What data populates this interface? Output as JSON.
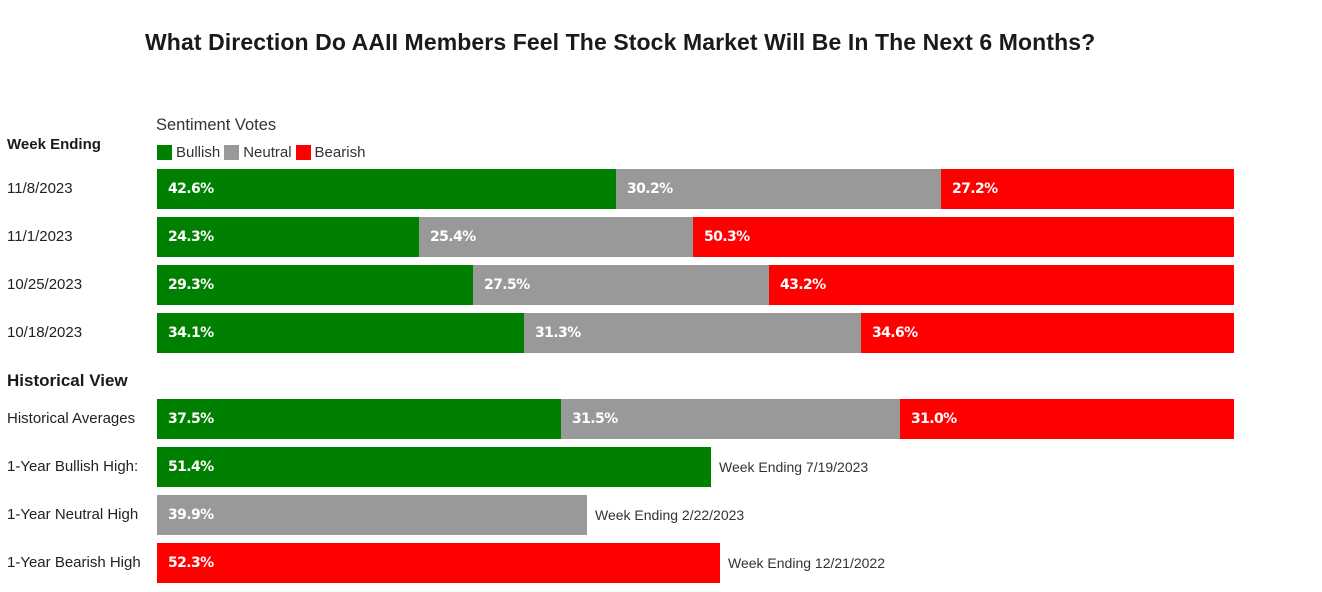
{
  "chart_data": {
    "type": "bar",
    "orientation": "horizontal",
    "stacked": true,
    "title": "What Direction Do AAII Members Feel The Stock Market Will Be In The Next 6 Months?",
    "legend_title": "Sentiment Votes",
    "legend": [
      {
        "name": "Bullish",
        "color": "#008000"
      },
      {
        "name": "Neutral",
        "color": "#999999"
      },
      {
        "name": "Bearish",
        "color": "#ff0000"
      }
    ],
    "weekly_header": "Week Ending",
    "weekly": [
      {
        "label": "11/8/2023",
        "values": [
          42.6,
          30.2,
          27.2
        ],
        "labels": [
          "42.6%",
          "30.2%",
          "27.2%"
        ]
      },
      {
        "label": "11/1/2023",
        "values": [
          24.3,
          25.4,
          50.3
        ],
        "labels": [
          "24.3%",
          "25.4%",
          "50.3%"
        ]
      },
      {
        "label": "10/25/2023",
        "values": [
          29.3,
          27.5,
          43.2
        ],
        "labels": [
          "29.3%",
          "27.5%",
          "43.2%"
        ]
      },
      {
        "label": "10/18/2023",
        "values": [
          34.1,
          31.3,
          34.6
        ],
        "labels": [
          "34.1%",
          "31.3%",
          "34.6%"
        ]
      }
    ],
    "historical_header": "Historical View",
    "historical_average": {
      "label": "Historical Averages",
      "values": [
        37.5,
        31.5,
        31.0
      ],
      "labels": [
        "37.5%",
        "31.5%",
        "31.0%"
      ]
    },
    "highs": [
      {
        "label": "1-Year Bullish High:",
        "series": 0,
        "value": 51.4,
        "value_label": "51.4%",
        "note": "Week Ending 7/19/2023"
      },
      {
        "label": "1-Year Neutral High",
        "series": 1,
        "value": 39.9,
        "value_label": "39.9%",
        "note": "Week Ending 2/22/2023"
      },
      {
        "label": "1-Year Bearish High",
        "series": 2,
        "value": 52.3,
        "value_label": "52.3%",
        "note": "Week Ending 12/21/2022"
      }
    ],
    "xlim": [
      0,
      100
    ]
  }
}
